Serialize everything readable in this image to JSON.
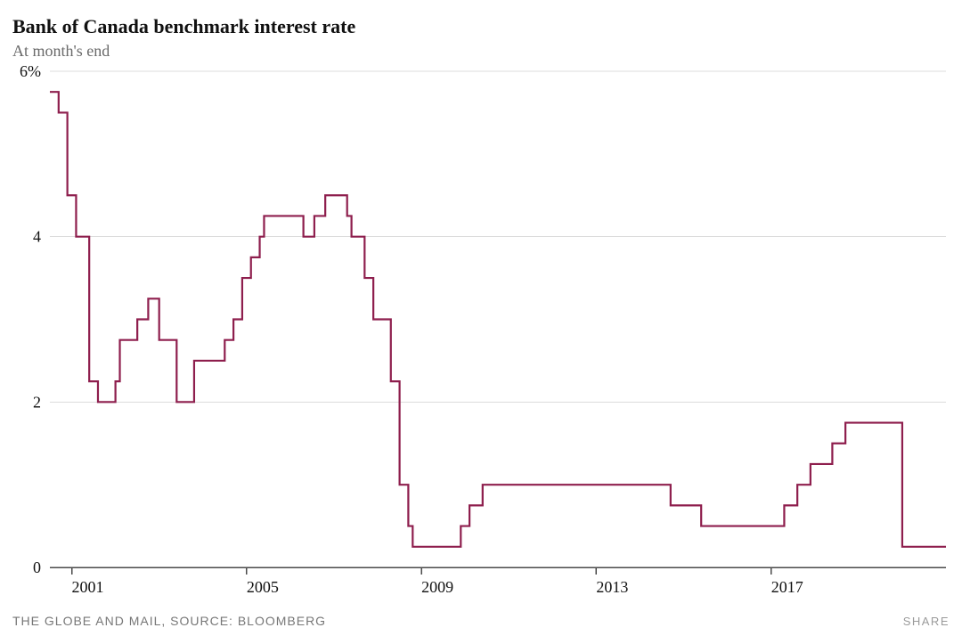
{
  "title": "Bank of Canada benchmark interest rate",
  "subtitle": "At month's end",
  "source": "THE GLOBE AND MAIL, SOURCE: BLOOMBERG",
  "share_label": "SHARE",
  "chart": {
    "type": "line-step",
    "line_color": "#8e1e4d",
    "line_width": 2.2,
    "background_color": "#ffffff",
    "grid_color": "#dcdcdc",
    "axis_color": "#4a4a4a",
    "tick_color": "#4a4a4a",
    "title_fontsize": 22,
    "subtitle_fontsize": 18,
    "label_fontsize": 18,
    "x_start_year": 2000.5,
    "x_end_year": 2021.0,
    "x_tick_years": [
      2001,
      2005,
      2009,
      2013,
      2017
    ],
    "ylim": [
      0,
      6
    ],
    "y_ticks": [
      0,
      2,
      4,
      6
    ],
    "y_tick_labels": [
      "0",
      "2",
      "4",
      "6%"
    ],
    "approx_aspect_w": 1052,
    "approx_aspect_h": 600,
    "series": [
      {
        "x": 2000.5,
        "y": 5.75
      },
      {
        "x": 2000.58,
        "y": 5.75
      },
      {
        "x": 2000.7,
        "y": 5.5
      },
      {
        "x": 2000.8,
        "y": 5.5
      },
      {
        "x": 2000.9,
        "y": 4.5
      },
      {
        "x": 2001.0,
        "y": 4.5
      },
      {
        "x": 2001.1,
        "y": 4.0
      },
      {
        "x": 2001.3,
        "y": 4.0
      },
      {
        "x": 2001.4,
        "y": 2.25
      },
      {
        "x": 2001.5,
        "y": 2.25
      },
      {
        "x": 2001.6,
        "y": 2.0
      },
      {
        "x": 2001.9,
        "y": 2.0
      },
      {
        "x": 2002.0,
        "y": 2.25
      },
      {
        "x": 2002.1,
        "y": 2.75
      },
      {
        "x": 2002.4,
        "y": 2.75
      },
      {
        "x": 2002.5,
        "y": 3.0
      },
      {
        "x": 2002.6,
        "y": 3.0
      },
      {
        "x": 2002.75,
        "y": 3.25
      },
      {
        "x": 2002.9,
        "y": 3.25
      },
      {
        "x": 2003.0,
        "y": 2.75
      },
      {
        "x": 2003.3,
        "y": 2.75
      },
      {
        "x": 2003.4,
        "y": 2.0
      },
      {
        "x": 2003.7,
        "y": 2.0
      },
      {
        "x": 2003.8,
        "y": 2.5
      },
      {
        "x": 2004.4,
        "y": 2.5
      },
      {
        "x": 2004.5,
        "y": 2.75
      },
      {
        "x": 2004.6,
        "y": 2.75
      },
      {
        "x": 2004.7,
        "y": 3.0
      },
      {
        "x": 2004.8,
        "y": 3.0
      },
      {
        "x": 2004.9,
        "y": 3.5
      },
      {
        "x": 2005.0,
        "y": 3.5
      },
      {
        "x": 2005.1,
        "y": 3.75
      },
      {
        "x": 2005.2,
        "y": 3.75
      },
      {
        "x": 2005.3,
        "y": 4.0
      },
      {
        "x": 2005.4,
        "y": 4.25
      },
      {
        "x": 2006.2,
        "y": 4.25
      },
      {
        "x": 2006.3,
        "y": 4.0
      },
      {
        "x": 2006.4,
        "y": 4.0
      },
      {
        "x": 2006.55,
        "y": 4.25
      },
      {
        "x": 2006.7,
        "y": 4.25
      },
      {
        "x": 2006.8,
        "y": 4.5
      },
      {
        "x": 2007.2,
        "y": 4.5
      },
      {
        "x": 2007.3,
        "y": 4.25
      },
      {
        "x": 2007.4,
        "y": 4.0
      },
      {
        "x": 2007.6,
        "y": 4.0
      },
      {
        "x": 2007.7,
        "y": 3.5
      },
      {
        "x": 2007.8,
        "y": 3.5
      },
      {
        "x": 2007.9,
        "y": 3.0
      },
      {
        "x": 2008.2,
        "y": 3.0
      },
      {
        "x": 2008.3,
        "y": 2.25
      },
      {
        "x": 2008.4,
        "y": 2.25
      },
      {
        "x": 2008.5,
        "y": 1.0
      },
      {
        "x": 2008.6,
        "y": 1.0
      },
      {
        "x": 2008.7,
        "y": 0.5
      },
      {
        "x": 2008.8,
        "y": 0.25
      },
      {
        "x": 2009.8,
        "y": 0.25
      },
      {
        "x": 2009.9,
        "y": 0.5
      },
      {
        "x": 2010.0,
        "y": 0.5
      },
      {
        "x": 2010.1,
        "y": 0.75
      },
      {
        "x": 2010.3,
        "y": 0.75
      },
      {
        "x": 2010.4,
        "y": 1.0
      },
      {
        "x": 2014.6,
        "y": 1.0
      },
      {
        "x": 2014.7,
        "y": 0.75
      },
      {
        "x": 2015.3,
        "y": 0.75
      },
      {
        "x": 2015.4,
        "y": 0.5
      },
      {
        "x": 2017.2,
        "y": 0.5
      },
      {
        "x": 2017.3,
        "y": 0.75
      },
      {
        "x": 2017.5,
        "y": 0.75
      },
      {
        "x": 2017.6,
        "y": 1.0
      },
      {
        "x": 2017.8,
        "y": 1.0
      },
      {
        "x": 2017.9,
        "y": 1.25
      },
      {
        "x": 2018.3,
        "y": 1.25
      },
      {
        "x": 2018.4,
        "y": 1.5
      },
      {
        "x": 2018.6,
        "y": 1.5
      },
      {
        "x": 2018.7,
        "y": 1.75
      },
      {
        "x": 2019.9,
        "y": 1.75
      },
      {
        "x": 2020.0,
        "y": 0.25
      },
      {
        "x": 2021.0,
        "y": 0.25
      }
    ]
  }
}
